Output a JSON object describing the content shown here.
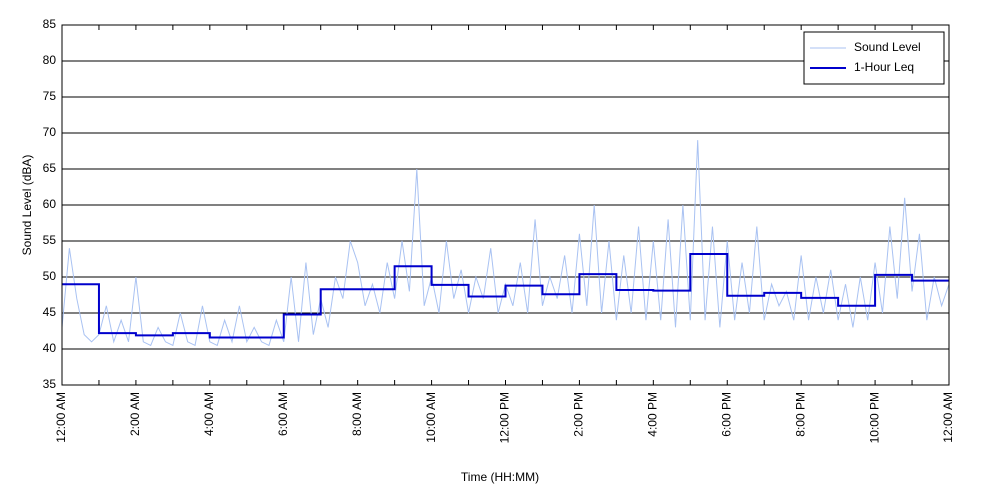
{
  "chart_data": {
    "type": "line",
    "xlabel": "Time (HH:MM)",
    "ylabel": "Sound Level (dBA)",
    "xlim": [
      0,
      24
    ],
    "ylim": [
      35,
      85
    ],
    "xticks": [
      {
        "value": 0,
        "label": "12:00 AM"
      },
      {
        "value": 2,
        "label": "2:00 AM"
      },
      {
        "value": 4,
        "label": "4:00 AM"
      },
      {
        "value": 6,
        "label": "6:00 AM"
      },
      {
        "value": 8,
        "label": "8:00 AM"
      },
      {
        "value": 10,
        "label": "10:00 AM"
      },
      {
        "value": 12,
        "label": "12:00 PM"
      },
      {
        "value": 14,
        "label": "2:00 PM"
      },
      {
        "value": 16,
        "label": "4:00 PM"
      },
      {
        "value": 18,
        "label": "6:00 PM"
      },
      {
        "value": 20,
        "label": "8:00 PM"
      },
      {
        "value": 22,
        "label": "10:00 PM"
      },
      {
        "value": 24,
        "label": "12:00 AM"
      }
    ],
    "xminorticks": [
      1,
      3,
      5,
      7,
      9,
      11,
      13,
      15,
      17,
      19,
      21,
      23
    ],
    "yticks": [
      35,
      40,
      45,
      50,
      55,
      60,
      65,
      70,
      75,
      80,
      85
    ],
    "grid": true,
    "legend": "upper right",
    "series": [
      {
        "name": "Sound Level",
        "color": "#a9c2f2",
        "step": false,
        "x": [
          0,
          0.2,
          0.4,
          0.6,
          0.8,
          1,
          1.2,
          1.4,
          1.6,
          1.8,
          2,
          2.2,
          2.4,
          2.6,
          2.8,
          3,
          3.2,
          3.4,
          3.6,
          3.8,
          4,
          4.2,
          4.4,
          4.6,
          4.8,
          5,
          5.2,
          5.4,
          5.6,
          5.8,
          6,
          6.2,
          6.4,
          6.6,
          6.8,
          7,
          7.2,
          7.4,
          7.6,
          7.8,
          8,
          8.2,
          8.4,
          8.6,
          8.8,
          9,
          9.2,
          9.4,
          9.6,
          9.8,
          10,
          10.2,
          10.4,
          10.6,
          10.8,
          11,
          11.2,
          11.4,
          11.6,
          11.8,
          12,
          12.2,
          12.4,
          12.6,
          12.8,
          13,
          13.2,
          13.4,
          13.6,
          13.8,
          14,
          14.2,
          14.4,
          14.6,
          14.8,
          15,
          15.2,
          15.4,
          15.6,
          15.8,
          16,
          16.2,
          16.4,
          16.6,
          16.8,
          17,
          17.2,
          17.4,
          17.6,
          17.8,
          18,
          18.2,
          18.4,
          18.6,
          18.8,
          19,
          19.2,
          19.4,
          19.6,
          19.8,
          20,
          20.2,
          20.4,
          20.6,
          20.8,
          21,
          21.2,
          21.4,
          21.6,
          21.8,
          22,
          22.2,
          22.4,
          22.6,
          22.8,
          23,
          23.2,
          23.4,
          23.6,
          23.8,
          24
        ],
        "values": [
          43,
          54,
          47,
          42,
          41,
          42,
          46,
          41,
          44,
          41,
          50,
          41,
          40.5,
          43,
          41,
          40.5,
          45,
          41,
          40.5,
          46,
          41,
          40.5,
          44,
          41,
          46,
          41,
          43,
          41,
          40.5,
          44,
          41,
          50,
          41,
          52,
          42,
          47,
          43,
          50,
          47,
          55,
          52,
          46,
          49,
          45,
          52,
          47,
          55,
          48,
          65,
          46,
          50,
          45,
          55,
          47,
          51,
          45,
          50,
          47,
          54,
          45,
          49,
          46,
          52,
          45,
          58,
          46,
          50,
          47,
          53,
          45,
          56,
          46,
          60,
          45,
          55,
          44,
          53,
          45,
          57,
          44,
          55,
          44,
          58,
          43,
          60,
          44,
          69,
          44,
          57,
          43,
          55,
          44,
          52,
          45,
          57,
          44,
          49,
          46,
          48,
          44,
          53,
          44,
          50,
          45,
          51,
          44,
          49,
          43,
          50,
          44,
          52,
          45,
          57,
          47,
          61,
          48,
          56,
          44,
          50,
          46,
          49
        ]
      },
      {
        "name": "1-Hour Leq",
        "color": "#0000cc",
        "step": true,
        "x": [
          0,
          1,
          2,
          3,
          4,
          5,
          6,
          7,
          8,
          9,
          10,
          11,
          12,
          13,
          14,
          15,
          16,
          17,
          18,
          19,
          20,
          21,
          22,
          23,
          24
        ],
        "values": [
          49.0,
          42.2,
          41.9,
          42.2,
          41.6,
          41.6,
          44.8,
          48.3,
          48.3,
          51.5,
          48.9,
          47.3,
          48.8,
          47.6,
          50.4,
          48.2,
          48.1,
          53.2,
          47.4,
          47.8,
          47.1,
          46.0,
          50.3,
          49.5,
          49.5
        ]
      }
    ]
  }
}
